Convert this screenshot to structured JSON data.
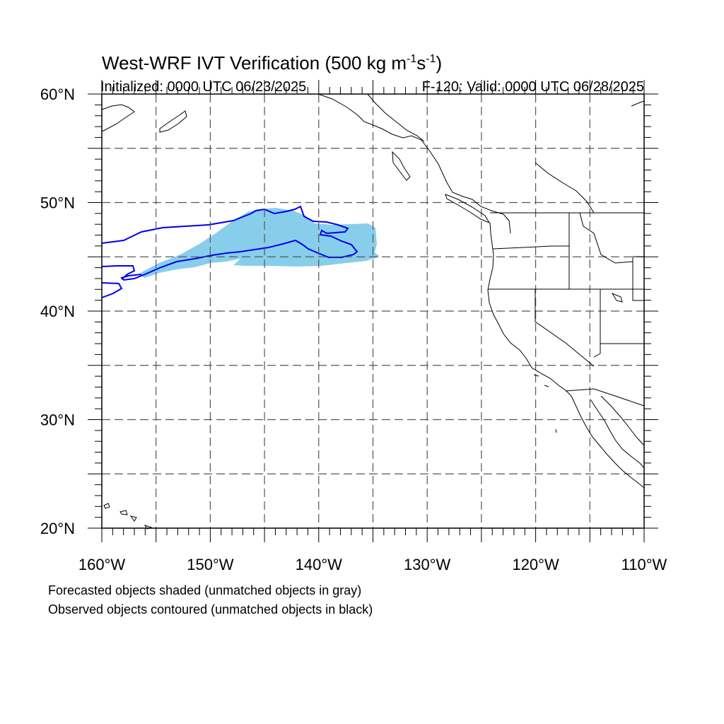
{
  "header": {
    "title_main": "West-WRF IVT Verification (500 kg m",
    "title_sup1": "-1",
    "title_mid": "s",
    "title_sup2": "-1",
    "title_end": ")",
    "init_label": "Initialized: 0000 UTC 06/23/2025",
    "valid_label": "F-120: Valid: 0000 UTC 06/28/2025"
  },
  "axes": {
    "lat_labels": [
      "60°N",
      "50°N",
      "40°N",
      "30°N",
      "20°N"
    ],
    "lon_labels": [
      "160°W",
      "150°W",
      "140°W",
      "130°W",
      "120°W",
      "110°W"
    ],
    "lat_range": [
      20,
      60
    ],
    "lon_range": [
      -160,
      -110
    ],
    "grid_spacing_deg": 5
  },
  "legend": {
    "line1": "Forecasted objects shaded (unmatched objects in gray)",
    "line2": "Observed objects contoured (unmatched objects in black)"
  },
  "colors": {
    "forecast_fill": "#87ceeb",
    "observed_contour": "#0000ee",
    "coastline": "#000000",
    "grid": "#555555"
  }
}
